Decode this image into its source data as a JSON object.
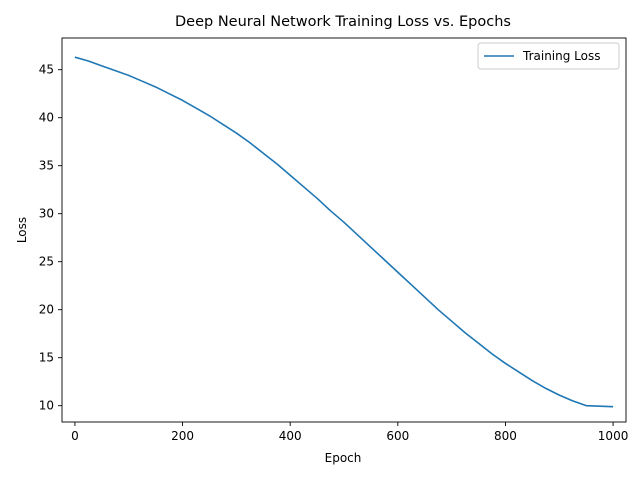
{
  "chart_data": {
    "type": "line",
    "title": "Deep Neural Network Training Loss vs. Epochs",
    "xlabel": "Epoch",
    "ylabel": "Loss",
    "xlim": [
      -24,
      1024
    ],
    "ylim": [
      8.3,
      48.3
    ],
    "xticks": [
      0,
      200,
      400,
      600,
      800,
      1000
    ],
    "yticks": [
      10,
      15,
      20,
      25,
      30,
      35,
      40,
      45
    ],
    "grid": false,
    "legend_position": "top-right",
    "series": [
      {
        "name": "Training Loss",
        "color": "#1f77b4",
        "x": [
          0,
          25,
          50,
          75,
          100,
          125,
          150,
          175,
          200,
          225,
          250,
          275,
          300,
          325,
          350,
          375,
          400,
          425,
          450,
          475,
          500,
          525,
          550,
          575,
          600,
          625,
          650,
          675,
          700,
          725,
          750,
          775,
          800,
          825,
          850,
          875,
          900,
          925,
          950,
          975,
          1000
        ],
        "y": [
          46.3,
          45.9,
          45.4,
          44.9,
          44.4,
          43.8,
          43.2,
          42.5,
          41.8,
          41.0,
          40.2,
          39.3,
          38.4,
          37.4,
          36.3,
          35.2,
          34.0,
          32.8,
          31.6,
          30.3,
          29.1,
          27.8,
          26.5,
          25.2,
          23.9,
          22.6,
          21.3,
          20.0,
          18.8,
          17.6,
          16.5,
          15.4,
          14.4,
          13.5,
          12.6,
          11.8,
          11.1,
          10.5,
          10.0,
          9.95,
          9.9
        ]
      }
    ]
  }
}
